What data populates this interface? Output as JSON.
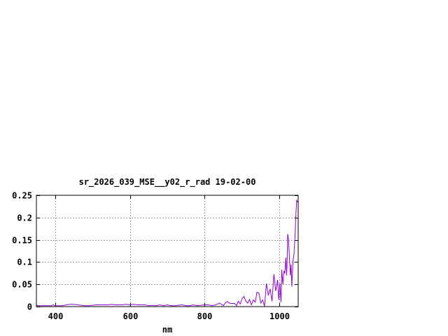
{
  "chart_data": {
    "type": "line",
    "title": "sr_2026_039_MSE__y02_r_rad 19-02-00",
    "xlabel": "nm",
    "ylabel": "",
    "xlim": [
      350,
      1050
    ],
    "ylim": [
      0,
      0.25
    ],
    "grid": true,
    "x_ticks": [
      400,
      600,
      800,
      1000
    ],
    "x_tick_labels": [
      "400",
      "600",
      "800",
      "1000"
    ],
    "y_ticks": [
      0,
      0.05,
      0.1,
      0.15,
      0.2,
      0.25
    ],
    "y_tick_labels": [
      "0",
      "0.05",
      "0.1",
      "0.15",
      "0.2",
      "0.25"
    ],
    "line_color": "#9400d3",
    "series": [
      {
        "x": [
          350,
          360,
          370,
          380,
          390,
          395,
          400,
          410,
          420,
          430,
          440,
          450,
          460,
          470,
          480,
          490,
          500,
          510,
          520,
          530,
          540,
          550,
          560,
          570,
          580,
          590,
          600,
          610,
          620,
          630,
          640,
          650,
          660,
          670,
          680,
          690,
          700,
          710,
          720,
          730,
          740,
          750,
          760,
          770,
          780,
          790,
          800,
          810,
          820,
          830,
          840,
          850,
          855,
          860,
          865,
          870,
          880,
          885,
          890,
          895,
          900,
          905,
          910,
          915,
          920,
          925,
          930,
          935,
          940,
          945,
          950,
          955,
          960,
          965,
          970,
          975,
          980,
          985,
          990,
          995,
          998,
          1001,
          1004,
          1006,
          1009,
          1012,
          1014,
          1017,
          1019,
          1020,
          1022,
          1024,
          1026,
          1029,
          1031,
          1033,
          1036,
          1039,
          1042,
          1044,
          1046,
          1048,
          1050
        ],
        "y": [
          0.003,
          0.002,
          0.002,
          0.002,
          0.002,
          0.004,
          0.002,
          0.002,
          0.002,
          0.004,
          0.005,
          0.005,
          0.004,
          0.003,
          0.002,
          0.002,
          0.003,
          0.004,
          0.004,
          0.004,
          0.004,
          0.005,
          0.004,
          0.004,
          0.004,
          0.005,
          0.004,
          0.005,
          0.004,
          0.004,
          0.004,
          0.002,
          0.003,
          0.002,
          0.004,
          0.002,
          0.004,
          0.002,
          0.002,
          0.003,
          0.004,
          0.002,
          0.002,
          0.004,
          0.002,
          0.003,
          0.004,
          0.004,
          0.002,
          0.004,
          0.008,
          0.002,
          0.008,
          0.012,
          0.008,
          0.007,
          0.007,
          0.002,
          0.012,
          0.006,
          0.018,
          0.023,
          0.012,
          0.008,
          0.016,
          0.004,
          0.015,
          0.01,
          0.032,
          0.03,
          0.008,
          0.015,
          0.001,
          0.052,
          0.025,
          0.04,
          0.012,
          0.073,
          0.035,
          0.06,
          0.015,
          0.052,
          0.01,
          0.083,
          0.05,
          0.08,
          0.075,
          0.11,
          0.07,
          0.09,
          0.163,
          0.15,
          0.12,
          0.07,
          0.095,
          0.045,
          0.1,
          0.12,
          0.165,
          0.21,
          0.24,
          0.235,
          0.235
        ]
      }
    ]
  }
}
